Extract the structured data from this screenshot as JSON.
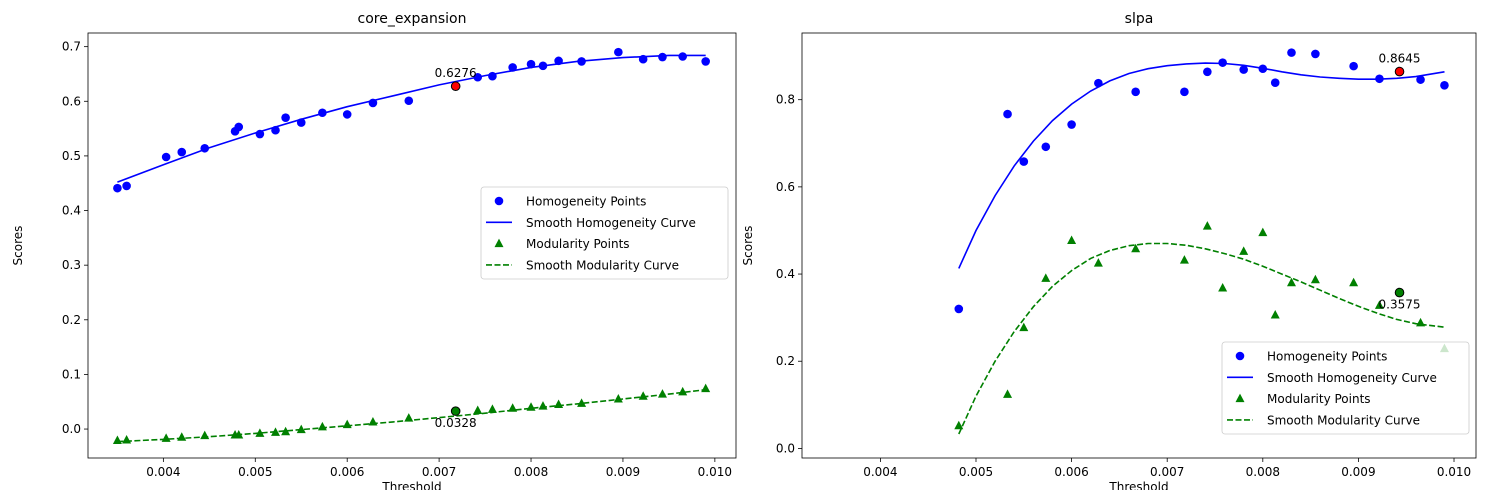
{
  "chart_data": [
    {
      "type": "scatter",
      "title": "core_expansion",
      "xlabel": "Threshold",
      "ylabel": "Scores",
      "xlim": [
        0.00318,
        0.01023
      ],
      "ylim": [
        -0.053,
        0.725
      ],
      "xticks": [
        0.004,
        0.005,
        0.006,
        0.007,
        0.008,
        0.009,
        0.01
      ],
      "xtick_labels": [
        "0.004",
        "0.005",
        "0.006",
        "0.007",
        "0.008",
        "0.009",
        "0.010"
      ],
      "yticks": [
        0.0,
        0.1,
        0.2,
        0.3,
        0.4,
        0.5,
        0.6,
        0.7
      ],
      "ytick_labels": [
        "0.0",
        "0.1",
        "0.2",
        "0.3",
        "0.4",
        "0.5",
        "0.6",
        "0.7"
      ],
      "legend_position": "center-right",
      "series": [
        {
          "name": "Homogeneity Points",
          "kind": "points",
          "marker": "circle",
          "color": "#0000ff",
          "x": [
            0.0035,
            0.0036,
            0.00403,
            0.0042,
            0.00445,
            0.00478,
            0.00482,
            0.00505,
            0.00522,
            0.00533,
            0.0055,
            0.00573,
            0.006,
            0.00628,
            0.00667,
            0.00742,
            0.00758,
            0.0078,
            0.008,
            0.00813,
            0.0083,
            0.00855,
            0.00895,
            0.00922,
            0.00943,
            0.00965,
            0.0099
          ],
          "y": [
            0.441,
            0.445,
            0.498,
            0.507,
            0.514,
            0.545,
            0.553,
            0.54,
            0.547,
            0.57,
            0.561,
            0.579,
            0.576,
            0.597,
            0.601,
            0.644,
            0.646,
            0.662,
            0.668,
            0.665,
            0.674,
            0.673,
            0.69,
            0.677,
            0.681,
            0.682,
            0.673
          ]
        },
        {
          "name": "Smooth Homogeneity Curve",
          "kind": "line",
          "style": "solid",
          "color": "#0000ff",
          "x": [
            0.0035,
            0.004,
            0.0045,
            0.005,
            0.0055,
            0.006,
            0.0065,
            0.007,
            0.0075,
            0.008,
            0.0085,
            0.009,
            0.0095,
            0.0099
          ],
          "y": [
            0.452,
            0.484,
            0.515,
            0.542,
            0.567,
            0.59,
            0.61,
            0.63,
            0.647,
            0.662,
            0.673,
            0.68,
            0.684,
            0.684
          ]
        },
        {
          "name": "Modularity Points",
          "kind": "points",
          "marker": "triangle",
          "color": "#008000",
          "x": [
            0.0035,
            0.0036,
            0.00403,
            0.0042,
            0.00445,
            0.00478,
            0.00482,
            0.00505,
            0.00522,
            0.00533,
            0.0055,
            0.00573,
            0.006,
            0.00628,
            0.00667,
            0.00742,
            0.00758,
            0.0078,
            0.008,
            0.00813,
            0.0083,
            0.00855,
            0.00895,
            0.00922,
            0.00943,
            0.00965,
            0.0099
          ],
          "y": [
            -0.021,
            -0.02,
            -0.017,
            -0.015,
            -0.012,
            -0.011,
            -0.011,
            -0.008,
            -0.006,
            -0.005,
            -0.001,
            0.004,
            0.008,
            0.013,
            0.02,
            0.034,
            0.036,
            0.038,
            0.04,
            0.042,
            0.045,
            0.047,
            0.055,
            0.06,
            0.064,
            0.068,
            0.074
          ]
        },
        {
          "name": "Smooth Modularity Curve",
          "kind": "line",
          "style": "dashed",
          "color": "#008000",
          "x": [
            0.0035,
            0.004,
            0.0045,
            0.005,
            0.0055,
            0.006,
            0.0065,
            0.007,
            0.0075,
            0.008,
            0.0085,
            0.009,
            0.0095,
            0.0099
          ],
          "y": [
            -0.023,
            -0.019,
            -0.014,
            -0.008,
            -0.001,
            0.006,
            0.013,
            0.021,
            0.029,
            0.038,
            0.046,
            0.055,
            0.064,
            0.072
          ]
        }
      ],
      "highlights": [
        {
          "x": 0.00718,
          "y": 0.6276,
          "label": "0.6276",
          "label_side": "above",
          "color": "#ff0000"
        },
        {
          "x": 0.00718,
          "y": 0.0328,
          "label": "0.0328",
          "label_side": "below",
          "color": "#008000"
        }
      ]
    },
    {
      "type": "scatter",
      "title": "slpa",
      "xlabel": "Threshold",
      "ylabel": "Scores",
      "xlim": [
        0.00318,
        0.01023
      ],
      "ylim": [
        -0.022,
        0.953
      ],
      "xticks": [
        0.004,
        0.005,
        0.006,
        0.007,
        0.008,
        0.009,
        0.01
      ],
      "xtick_labels": [
        "0.004",
        "0.005",
        "0.006",
        "0.007",
        "0.008",
        "0.009",
        "0.010"
      ],
      "yticks": [
        0.0,
        0.2,
        0.4,
        0.6,
        0.8
      ],
      "ytick_labels": [
        "0.0",
        "0.2",
        "0.4",
        "0.6",
        "0.8"
      ],
      "legend_position": "lower-right",
      "series": [
        {
          "name": "Homogeneity Points",
          "kind": "points",
          "marker": "circle",
          "color": "#0000ff",
          "x": [
            0.00482,
            0.00533,
            0.0055,
            0.00573,
            0.006,
            0.00628,
            0.00667,
            0.00718,
            0.00742,
            0.00758,
            0.0078,
            0.008,
            0.00813,
            0.0083,
            0.00855,
            0.00895,
            0.00922,
            0.00965,
            0.0099
          ],
          "y": [
            0.32,
            0.767,
            0.658,
            0.692,
            0.743,
            0.838,
            0.818,
            0.818,
            0.864,
            0.885,
            0.869,
            0.871,
            0.839,
            0.908,
            0.905,
            0.877,
            0.848,
            0.846,
            0.833
          ]
        },
        {
          "name": "Smooth Homogeneity Curve",
          "kind": "line",
          "style": "solid",
          "color": "#0000ff",
          "x": [
            0.00482,
            0.005,
            0.0052,
            0.0054,
            0.0056,
            0.0058,
            0.006,
            0.0062,
            0.0064,
            0.0066,
            0.0068,
            0.007,
            0.0072,
            0.0074,
            0.0076,
            0.0078,
            0.008,
            0.0082,
            0.0084,
            0.0086,
            0.0088,
            0.009,
            0.0092,
            0.0094,
            0.0096,
            0.0099
          ],
          "y": [
            0.413,
            0.5,
            0.58,
            0.648,
            0.705,
            0.752,
            0.79,
            0.82,
            0.843,
            0.86,
            0.871,
            0.878,
            0.882,
            0.884,
            0.883,
            0.879,
            0.872,
            0.864,
            0.857,
            0.852,
            0.849,
            0.847,
            0.847,
            0.849,
            0.853,
            0.864
          ]
        },
        {
          "name": "Modularity Points",
          "kind": "points",
          "marker": "triangle",
          "color": "#008000",
          "x": [
            0.00482,
            0.00533,
            0.0055,
            0.00573,
            0.006,
            0.00628,
            0.00667,
            0.00718,
            0.00742,
            0.00758,
            0.0078,
            0.008,
            0.00813,
            0.0083,
            0.00855,
            0.00895,
            0.00922,
            0.00965,
            0.0099
          ],
          "y": [
            0.052,
            0.124,
            0.277,
            0.39,
            0.477,
            0.425,
            0.458,
            0.432,
            0.51,
            0.368,
            0.452,
            0.495,
            0.306,
            0.38,
            0.387,
            0.38,
            0.328,
            0.288,
            0.229
          ]
        },
        {
          "name": "Smooth Modularity Curve",
          "kind": "line",
          "style": "dashed",
          "color": "#008000",
          "x": [
            0.00482,
            0.005,
            0.0052,
            0.0054,
            0.0056,
            0.0058,
            0.006,
            0.0062,
            0.0064,
            0.0066,
            0.0068,
            0.007,
            0.0072,
            0.0074,
            0.0076,
            0.0078,
            0.008,
            0.0082,
            0.0084,
            0.0086,
            0.0088,
            0.009,
            0.0092,
            0.0094,
            0.0096,
            0.0099
          ],
          "y": [
            0.033,
            0.12,
            0.2,
            0.268,
            0.325,
            0.372,
            0.408,
            0.436,
            0.454,
            0.465,
            0.47,
            0.47,
            0.466,
            0.458,
            0.447,
            0.434,
            0.418,
            0.4,
            0.382,
            0.363,
            0.344,
            0.326,
            0.31,
            0.296,
            0.286,
            0.278
          ]
        }
      ],
      "highlights": [
        {
          "x": 0.00943,
          "y": 0.8645,
          "label": "0.8645",
          "label_side": "above",
          "color": "#ff0000"
        },
        {
          "x": 0.00943,
          "y": 0.3575,
          "label": "0.3575",
          "label_side": "below",
          "color": "#008000"
        }
      ]
    }
  ]
}
